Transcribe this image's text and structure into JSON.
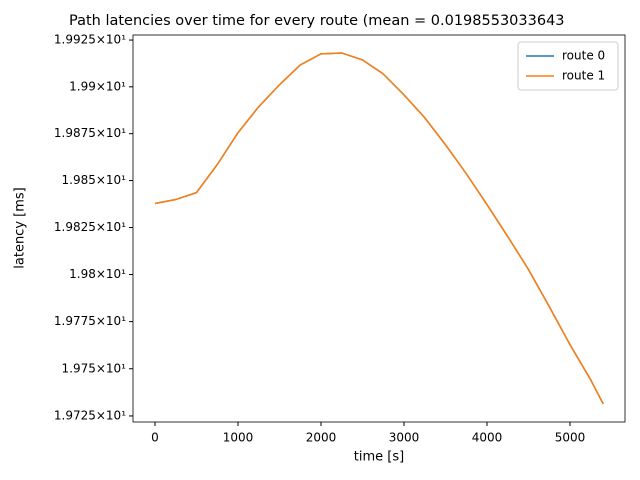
{
  "chart_data": {
    "type": "line",
    "title": "Path latencies over time for every route (mean = 0.0198553033643",
    "x_label": "time [s]",
    "y_label": "latency [ms]",
    "x": [
      0,
      250,
      500,
      750,
      1000,
      1250,
      1500,
      1750,
      2000,
      2250,
      2500,
      2750,
      3000,
      3250,
      3500,
      3750,
      4000,
      4250,
      4500,
      4750,
      5000,
      5250,
      5400
    ],
    "series": [
      {
        "name": "route 0",
        "color": "#1f77b4",
        "values": [
          19.8378,
          19.8399,
          19.8436,
          19.8585,
          19.8755,
          19.8894,
          19.9011,
          19.9117,
          19.9176,
          19.9181,
          19.9144,
          19.9069,
          19.8957,
          19.8835,
          19.8691,
          19.8537,
          19.8372,
          19.8202,
          19.8027,
          19.783,
          19.7628,
          19.7441,
          19.7314
        ]
      },
      {
        "name": "route 1",
        "color": "#ff7f0e",
        "values": [
          19.8378,
          19.8399,
          19.8436,
          19.8585,
          19.8755,
          19.8894,
          19.9011,
          19.9117,
          19.9176,
          19.9181,
          19.9144,
          19.9069,
          19.8957,
          19.8835,
          19.8691,
          19.8537,
          19.8372,
          19.8202,
          19.8027,
          19.783,
          19.7628,
          19.7441,
          19.7314
        ]
      }
    ],
    "xlim": [
      -265,
      5663
    ],
    "xticks": [
      0,
      1000,
      2000,
      3000,
      4000,
      5000
    ],
    "ylim": [
      19.7218,
      19.9277
    ],
    "yscale": "log",
    "yticks": [
      {
        "value": 19.725,
        "label": "1.9725×10¹"
      },
      {
        "value": 19.75,
        "label": "1.975×10¹"
      },
      {
        "value": 19.775,
        "label": "1.9775×10¹"
      },
      {
        "value": 19.8,
        "label": "1.98×10¹"
      },
      {
        "value": 19.825,
        "label": "1.9825×10¹"
      },
      {
        "value": 19.85,
        "label": "1.985×10¹"
      },
      {
        "value": 19.875,
        "label": "1.9875×10¹"
      },
      {
        "value": 19.9,
        "label": "1.99×10¹"
      },
      {
        "value": 19.925,
        "label": "1.9925×10¹"
      }
    ],
    "legend": "upper right",
    "grid": false
  }
}
